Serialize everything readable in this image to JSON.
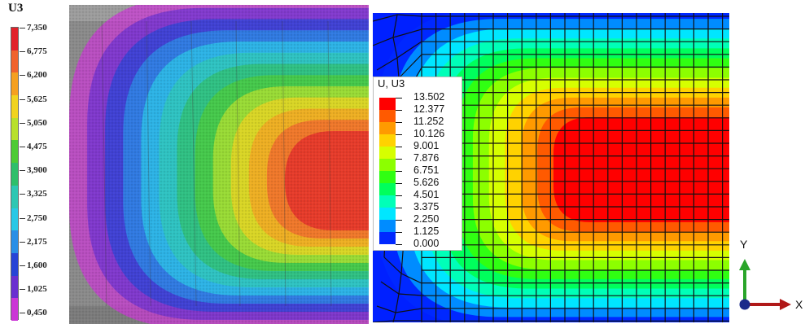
{
  "left_legend": {
    "title": "U3",
    "labels": [
      "7,350",
      "6,775",
      "6,200",
      "5,625",
      "5,050",
      "4,475",
      "3,900",
      "3,325",
      "2,750",
      "2,175",
      "1,600",
      "1,025",
      "0,450"
    ],
    "colors": [
      "#e2222a",
      "#f0632d",
      "#f5a020",
      "#f1d31f",
      "#b8e02c",
      "#4ecb35",
      "#2fbf6a",
      "#2ec7b3",
      "#29c8e6",
      "#2a8fe6",
      "#2744d6",
      "#6a2fd0",
      "#cb36d6"
    ]
  },
  "right_legend": {
    "title": "U, U3",
    "labels": [
      "13.502",
      "12.377",
      "11.252",
      "10.126",
      "9.001",
      "7.876",
      "6.751",
      "5.626",
      "4.501",
      "3.375",
      "2.250",
      "1.125",
      "0.000"
    ],
    "colors": [
      "#ff0000",
      "#ff5a00",
      "#ff9a00",
      "#ffd200",
      "#d6ff00",
      "#8cff00",
      "#30ff12",
      "#00ff5c",
      "#00ffb8",
      "#00e6ff",
      "#008cff",
      "#0028ff"
    ]
  },
  "triad": {
    "y_label": "Y",
    "x_label": "X"
  }
}
